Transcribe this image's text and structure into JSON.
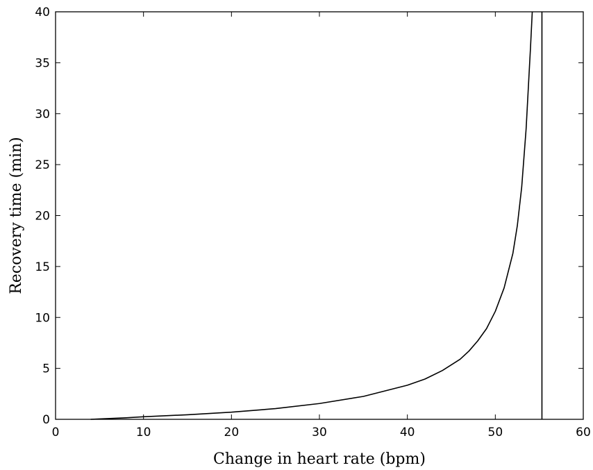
{
  "chart_data": {
    "type": "line",
    "title": "",
    "xlabel": "Change in heart rate (bpm)",
    "ylabel": "Recovery time (min)",
    "xlim": [
      0,
      60
    ],
    "ylim": [
      0,
      40
    ],
    "grid": false,
    "x_ticks": [
      "0",
      "10",
      "20",
      "30",
      "40",
      "50",
      "60"
    ],
    "y_ticks": [
      "0",
      "5",
      "10",
      "15",
      "20",
      "25",
      "30",
      "35",
      "40"
    ],
    "series": [
      {
        "color": "#000000",
        "x": [
          4,
          5,
          8,
          10,
          15,
          20,
          25,
          30,
          35,
          40,
          42,
          44,
          46,
          47,
          48,
          49,
          50,
          51,
          52,
          52.5,
          53,
          53.5,
          54,
          54.2
        ],
        "y": [
          0.0,
          0.04,
          0.15,
          0.25,
          0.45,
          0.7,
          1.05,
          1.55,
          2.25,
          3.35,
          3.95,
          4.8,
          5.9,
          6.7,
          7.7,
          8.9,
          10.6,
          12.9,
          16.3,
          19.0,
          22.8,
          28.5,
          36.5,
          40.0
        ]
      }
    ],
    "vertical_line": {
      "x": 55.3,
      "color": "#000000"
    }
  }
}
